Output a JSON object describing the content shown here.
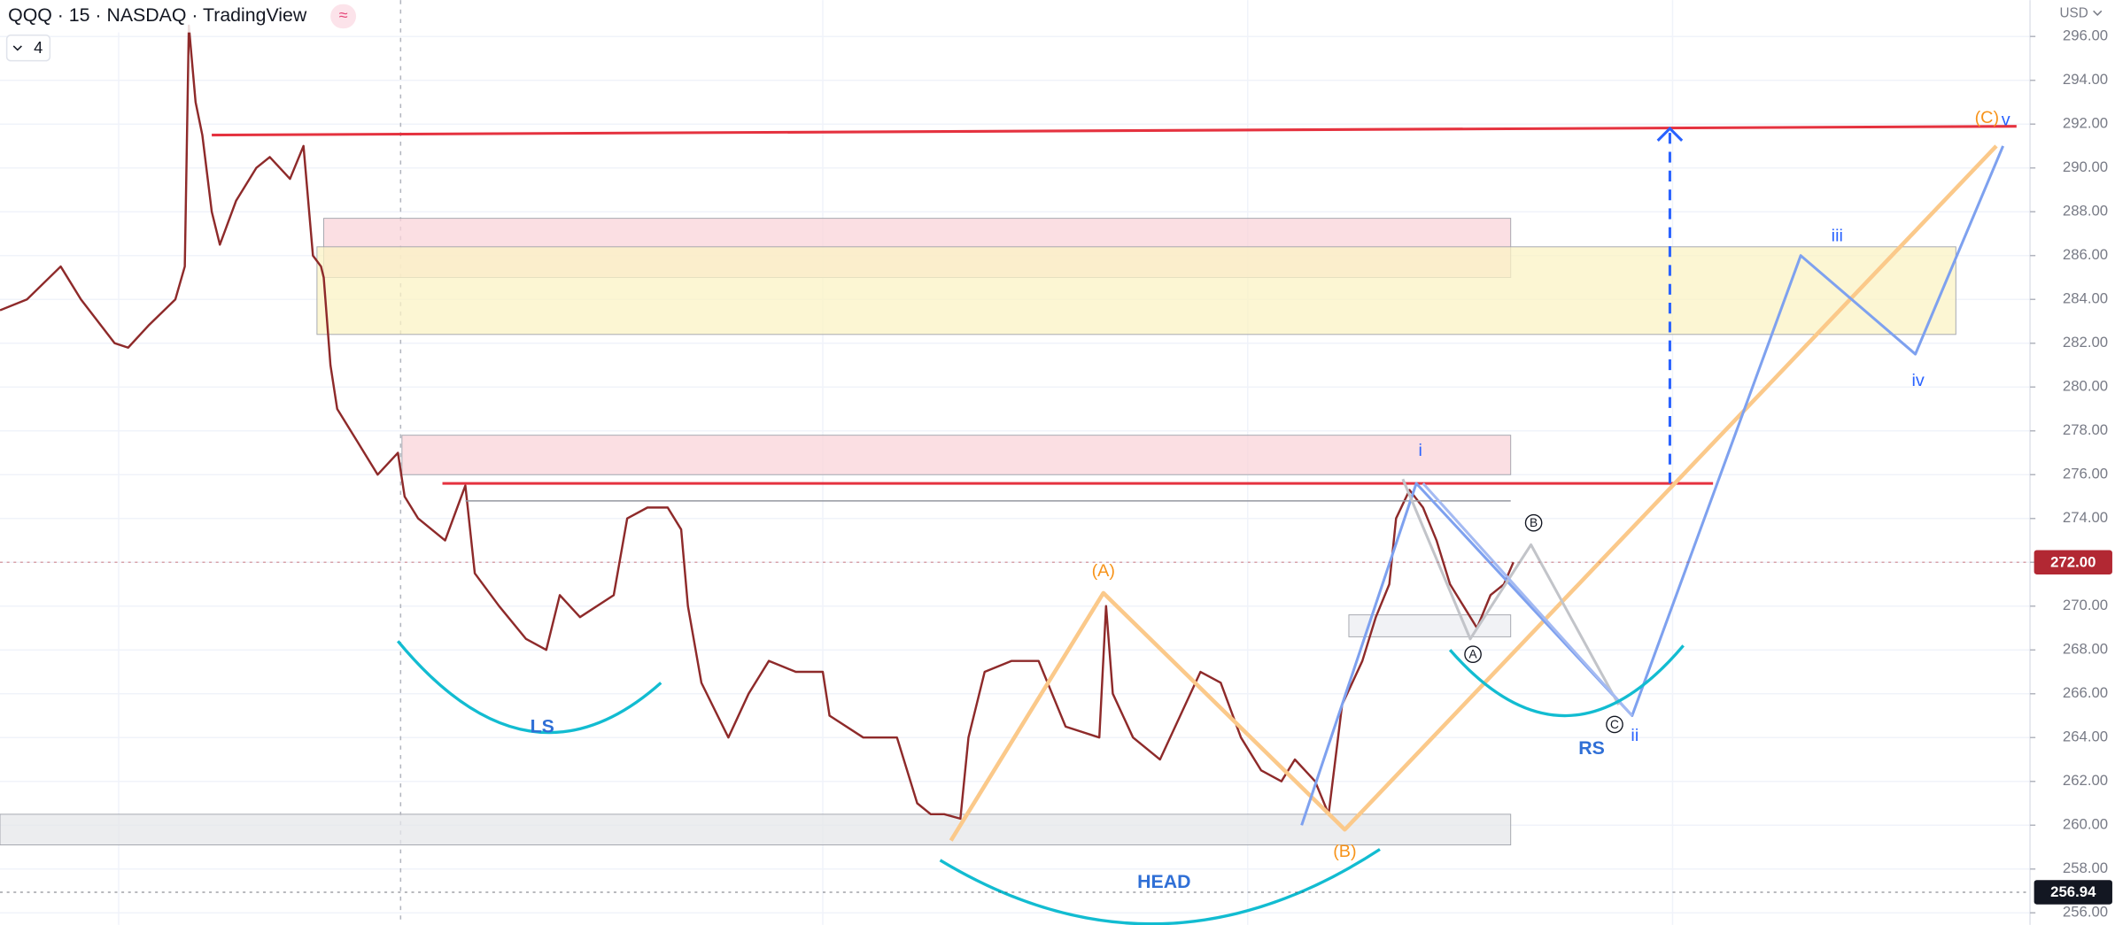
{
  "chart_data": {
    "type": "line",
    "title": "QQQ · 15 · NASDAQ · TradingView",
    "status_icon": "≈",
    "indicator_count": "4",
    "currency": "USD",
    "xlim": [
      0,
      1505
    ],
    "ylim": [
      255.45,
      297.66
    ],
    "yticks": [
      {
        "value": 256,
        "label": "256.00"
      },
      {
        "value": 258,
        "label": "258.00"
      },
      {
        "value": 260,
        "label": "260.00"
      },
      {
        "value": 262,
        "label": "262.00"
      },
      {
        "value": 264,
        "label": "264.00"
      },
      {
        "value": 266,
        "label": "266.00"
      },
      {
        "value": 268,
        "label": "268.00"
      },
      {
        "value": 270,
        "label": "270.00"
      },
      {
        "value": 272,
        "label": "272.00"
      },
      {
        "value": 274,
        "label": "274.00"
      },
      {
        "value": 276,
        "label": "276.00"
      },
      {
        "value": 278,
        "label": "278.00"
      },
      {
        "value": 280,
        "label": "280.00"
      },
      {
        "value": 282,
        "label": "282.00"
      },
      {
        "value": 284,
        "label": "284.00"
      },
      {
        "value": 286,
        "label": "286.00"
      },
      {
        "value": 288,
        "label": "288.00"
      },
      {
        "value": 290,
        "label": "290.00"
      },
      {
        "value": 292,
        "label": "292.00"
      },
      {
        "value": 294,
        "label": "294.00"
      },
      {
        "value": 296,
        "label": "296.00"
      }
    ],
    "grid": true,
    "x": [
      0,
      20,
      45,
      60,
      85,
      95,
      110,
      130,
      137,
      140,
      145,
      150,
      157,
      163,
      175,
      190,
      200,
      215,
      225,
      232,
      238,
      240,
      245,
      250,
      265,
      280,
      295,
      300,
      310,
      330,
      345,
      352,
      370,
      390,
      405,
      415,
      430,
      455,
      465,
      480,
      495,
      505,
      510,
      520,
      540,
      555,
      570,
      590,
      610,
      615,
      640,
      665,
      680,
      690,
      700,
      712,
      718,
      730,
      750,
      770,
      790,
      815,
      820,
      825,
      840,
      860,
      875,
      890,
      905,
      920,
      935,
      950,
      960,
      975,
      985,
      995,
      1010,
      1020,
      1030,
      1035,
      1045,
      1055,
      1065,
      1075,
      1085,
      1095,
      1105,
      1115,
      1122
    ],
    "series": [
      {
        "name": "QQQ",
        "color": "#8e2a2a",
        "values": [
          283.5,
          284,
          285.5,
          284,
          282,
          281.8,
          282.8,
          284,
          285.5,
          296.5,
          293,
          291.5,
          288,
          286.5,
          288.5,
          290,
          290.5,
          289.5,
          291,
          286,
          285.5,
          285,
          281,
          279,
          277.5,
          276,
          277,
          275,
          274,
          273,
          275.5,
          271.5,
          270,
          268.5,
          268,
          270.5,
          269.5,
          270.5,
          274,
          274.5,
          274.5,
          273.5,
          270,
          266.5,
          264,
          266,
          267.5,
          267,
          267,
          265,
          264,
          264,
          261,
          260.5,
          260.5,
          260.3,
          264,
          267,
          267.5,
          267.5,
          264.5,
          264,
          270,
          266,
          264,
          263,
          265,
          267,
          266.5,
          264,
          262.5,
          262,
          263,
          262,
          260.5,
          265.5,
          267.5,
          269.5,
          271,
          274,
          275.3,
          274.5,
          273,
          271,
          270,
          269,
          270.5,
          271,
          272
        ]
      }
    ],
    "price_tags": [
      {
        "value": 272,
        "label": "272.00",
        "color": "#b22833"
      },
      {
        "value": 256.94,
        "label": "256.94",
        "color": "#131722"
      }
    ],
    "zones": [
      {
        "x": [
          240,
          1120
        ],
        "y": [
          285,
          287.7
        ],
        "color": "#f9d4da"
      },
      {
        "x": [
          235,
          1450
        ],
        "y": [
          282.4,
          286.4
        ],
        "color": "#fbf3c4"
      },
      {
        "x": [
          298,
          1120
        ],
        "y": [
          276,
          277.8
        ],
        "color": "#f9d4da"
      },
      {
        "x": [
          0,
          1120
        ],
        "y": [
          259.1,
          260.5
        ],
        "color": "#e6e7ea"
      },
      {
        "x": [
          1000,
          1120
        ],
        "y": [
          268.6,
          269.6
        ],
        "color": "#eceef2"
      }
    ],
    "lines": [
      {
        "x": [
          157,
          1495
        ],
        "y": [
          291.5,
          291.9
        ],
        "color": "#e5323f",
        "width": 2
      },
      {
        "x": [
          328,
          1270
        ],
        "y": [
          275.6,
          275.6
        ],
        "color": "#e5323f",
        "width": 2
      },
      {
        "x": [
          345,
          1120
        ],
        "y": [
          274.8,
          274.8
        ],
        "color": "#9598a1",
        "width": 1
      },
      {
        "x": [
          705,
          818,
          997,
          1480
        ],
        "y": [
          259.3,
          270.6,
          259.8,
          291
        ],
        "color": "#fbc98a",
        "width": 3
      },
      {
        "x": [
          965,
          1050,
          1210,
          1335,
          1420,
          1485
        ],
        "y": [
          260,
          275.6,
          265,
          286,
          281.5,
          291
        ],
        "color": "#7ea1ef",
        "width": 2
      },
      {
        "x": [
          1040,
          1090,
          1135,
          1200
        ],
        "y": [
          275.8,
          268.5,
          272.8,
          265.5
        ],
        "color": "#c2c4c9",
        "width": 2
      },
      {
        "x": [
          1055,
          1210
        ],
        "y": [
          275.6,
          265
        ],
        "color": "#a4baf2",
        "width": 2
      },
      {
        "x": [
          1238,
          1238
        ],
        "y": [
          275.6,
          291.8
        ],
        "color": "#2962ff",
        "width": 2,
        "dash": true,
        "arrow": true
      }
    ],
    "arcs": [
      {
        "x": [
          295,
          490
        ],
        "y": [
          268.4,
          266.5
        ],
        "bottom": 264.3,
        "color": "#12bcd1"
      },
      {
        "x": [
          697,
          1023
        ],
        "y": [
          258.4,
          258.9
        ],
        "bottom": 255.5,
        "color": "#12bcd1"
      },
      {
        "x": [
          1075,
          1248
        ],
        "y": [
          268,
          268.2
        ],
        "bottom": 265,
        "color": "#12bcd1"
      }
    ],
    "labels": [
      {
        "text": "(A)",
        "x": 818,
        "y": 271.6,
        "color": "#f7931a"
      },
      {
        "text": "(B)",
        "x": 997,
        "y": 258.8,
        "color": "#f7931a"
      },
      {
        "text": "(C)",
        "x": 1473,
        "y": 292.3,
        "color": "#f7931a"
      },
      {
        "text": "v",
        "x": 1487,
        "y": 292.2,
        "color": "#2962ff"
      },
      {
        "text": "i",
        "x": 1053,
        "y": 277.1,
        "color": "#2962ff"
      },
      {
        "text": "ii",
        "x": 1212,
        "y": 264.1,
        "color": "#2962ff"
      },
      {
        "text": "iii",
        "x": 1362,
        "y": 286.9,
        "color": "#2962ff"
      },
      {
        "text": "iv",
        "x": 1422,
        "y": 280.3,
        "color": "#2962ff"
      },
      {
        "text": "B",
        "x": 1137,
        "y": 273.8,
        "color": "#131722",
        "circled": true
      },
      {
        "text": "A",
        "x": 1092,
        "y": 267.8,
        "color": "#131722",
        "circled": true
      },
      {
        "text": "C",
        "x": 1197,
        "y": 264.6,
        "color": "#131722",
        "circled": true
      },
      {
        "text": "LS",
        "x": 402,
        "y": 264.5,
        "color": "#2f6fd6",
        "bold": true
      },
      {
        "text": "HEAD",
        "x": 863,
        "y": 257.4,
        "color": "#2f6fd6",
        "bold": true
      },
      {
        "text": "RS",
        "x": 1180,
        "y": 263.5,
        "color": "#2f6fd6",
        "bold": true
      }
    ]
  }
}
